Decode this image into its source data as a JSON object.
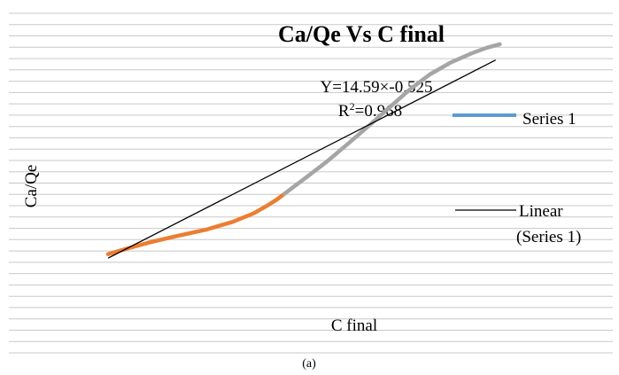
{
  "chart_data": {
    "type": "line",
    "title": "Ca/Qe Vs C final",
    "xlabel": "C final",
    "ylabel": "Ca/Qe",
    "caption": "(a)",
    "equation": "Y=14.59×-0.525",
    "r_squared_prefix": "R",
    "r_squared_exp": "2",
    "r_squared_value": "=0.968",
    "grid": true,
    "legend_position": "right",
    "legend": [
      {
        "label": "Series 1",
        "color": "#5b9bd5"
      },
      {
        "label_line1": "Linear",
        "label_line2": "(Series 1)",
        "color": "#000000"
      }
    ],
    "series": [
      {
        "name": "Series 1",
        "segments": [
          {
            "color": "#ed7d31",
            "x": [
              0.0,
              0.04,
              0.08,
              0.13,
              0.19,
              0.24,
              0.28,
              0.305,
              0.325,
              0.34
            ],
            "y": [
              0.18,
              0.203,
              0.225,
              0.248,
              0.274,
              0.303,
              0.335,
              0.363,
              0.388,
              0.41
            ]
          },
          {
            "color": "#a5a5a5",
            "x": [
              0.34,
              0.38,
              0.42,
              0.46,
              0.5,
              0.54,
              0.58,
              0.62,
              0.66,
              0.7,
              0.73,
              0.755
            ],
            "y": [
              0.41,
              0.47,
              0.53,
              0.597,
              0.665,
              0.735,
              0.805,
              0.865,
              0.91,
              0.945,
              0.967,
              0.98
            ]
          }
        ]
      },
      {
        "name": "Linear (Series 1)",
        "color": "#000000",
        "x": [
          0.0,
          0.747
        ],
        "y": [
          0.165,
          0.92
        ]
      }
    ]
  }
}
